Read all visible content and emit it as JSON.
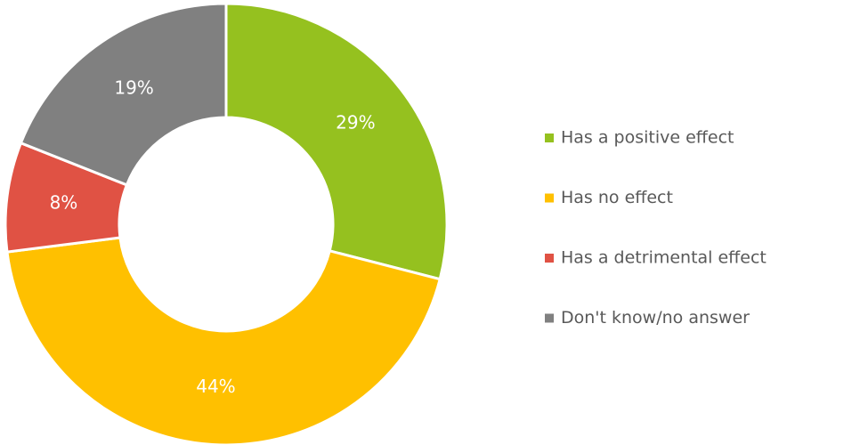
{
  "chart_data": {
    "type": "pie",
    "categories": [
      "Has a positive effect",
      "Has no effect",
      "Has a detrimental effect",
      "Don't know/no answer"
    ],
    "values": [
      29,
      44,
      8,
      19
    ],
    "value_labels": [
      "29%",
      "44%",
      "8%",
      "19%"
    ],
    "colors": [
      "#95c11f",
      "#ffc000",
      "#e05244",
      "#808080"
    ],
    "legend": "right"
  }
}
